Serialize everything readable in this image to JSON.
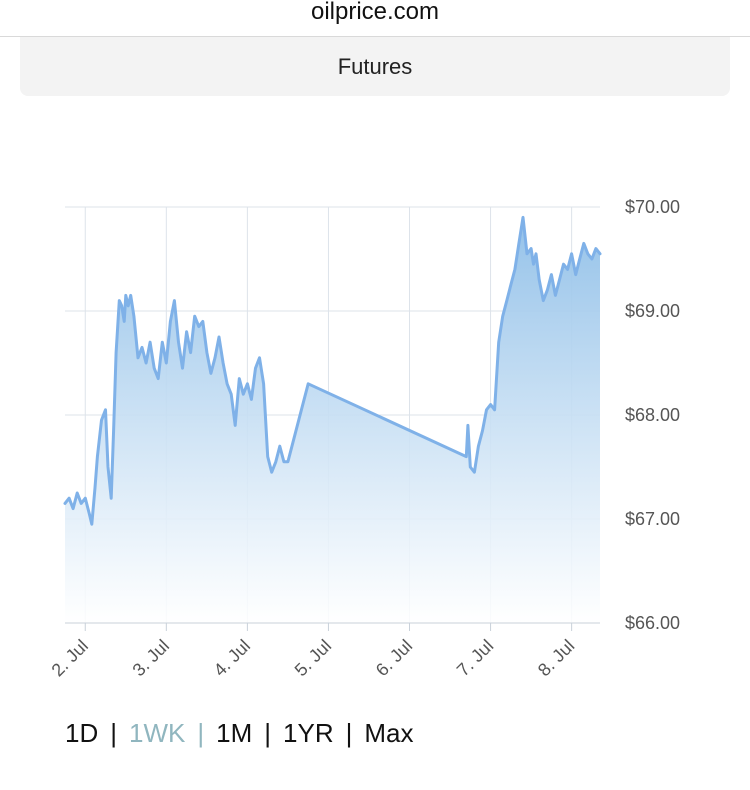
{
  "header": {
    "domain": "oilprice.com",
    "tab_label": "Futures"
  },
  "range_selector": {
    "options": [
      "1D",
      "1WK",
      "1M",
      "1YR",
      "Max"
    ],
    "active_index": 1,
    "separator": "|"
  },
  "colors": {
    "line": "#7fb1e8",
    "area_top": "#8fbfe8",
    "area_bottom": "#ffffff",
    "grid": "#dde3ea",
    "active_range": "#90b6bf"
  },
  "chart_data": {
    "type": "area",
    "title": "",
    "xlabel": "",
    "ylabel": "",
    "y_axis_position": "right",
    "grid": true,
    "ylim": [
      66.0,
      70.0
    ],
    "y_ticks": [
      "$70.00",
      "$69.00",
      "$68.00",
      "$67.00",
      "$66.00"
    ],
    "x_ticks": [
      "2. Jul",
      "3. Jul",
      "4. Jul",
      "5. Jul",
      "6. Jul",
      "7. Jul",
      "8. Jul"
    ],
    "x_range_days": [
      1.75,
      8.35
    ],
    "series": [
      {
        "x": [
          1.75,
          1.8,
          1.85,
          1.9,
          1.95,
          2.0,
          2.05,
          2.08,
          2.12,
          2.15,
          2.2,
          2.25,
          2.28,
          2.32,
          2.35,
          2.38,
          2.42,
          2.45,
          2.48,
          2.5,
          2.53,
          2.56,
          2.6,
          2.65,
          2.7,
          2.75,
          2.8,
          2.85,
          2.9,
          2.95,
          3.0,
          3.05,
          3.1,
          3.15,
          3.2,
          3.25,
          3.3,
          3.35,
          3.4,
          3.45,
          3.5,
          3.55,
          3.6,
          3.65,
          3.7,
          3.75,
          3.8,
          3.85,
          3.9,
          3.95,
          4.0,
          4.05,
          4.1,
          4.15,
          4.2,
          4.25,
          4.3,
          4.35,
          4.4,
          4.45,
          4.5,
          4.75,
          6.7,
          6.72,
          6.75,
          6.8,
          6.85,
          6.9,
          6.95,
          7.0,
          7.05,
          7.1,
          7.15,
          7.2,
          7.25,
          7.3,
          7.35,
          7.4,
          7.45,
          7.5,
          7.53,
          7.56,
          7.6,
          7.65,
          7.7,
          7.75,
          7.8,
          7.85,
          7.9,
          7.95,
          8.0,
          8.05,
          8.1,
          8.15,
          8.2,
          8.25,
          8.3,
          8.35
        ],
        "values": [
          67.15,
          67.2,
          67.1,
          67.25,
          67.15,
          67.2,
          67.05,
          66.95,
          67.3,
          67.6,
          67.95,
          68.05,
          67.5,
          67.2,
          67.85,
          68.6,
          69.1,
          69.05,
          68.9,
          69.15,
          69.05,
          69.15,
          68.95,
          68.55,
          68.65,
          68.5,
          68.7,
          68.45,
          68.35,
          68.7,
          68.5,
          68.9,
          69.1,
          68.7,
          68.45,
          68.8,
          68.6,
          68.95,
          68.85,
          68.9,
          68.6,
          68.4,
          68.55,
          68.75,
          68.5,
          68.3,
          68.2,
          67.9,
          68.35,
          68.2,
          68.3,
          68.15,
          68.45,
          68.55,
          68.3,
          67.6,
          67.45,
          67.55,
          67.7,
          67.55,
          67.55,
          68.3,
          67.6,
          67.9,
          67.5,
          67.45,
          67.7,
          67.85,
          68.05,
          68.1,
          68.05,
          68.7,
          68.95,
          69.1,
          69.25,
          69.4,
          69.65,
          69.9,
          69.55,
          69.6,
          69.45,
          69.55,
          69.3,
          69.1,
          69.2,
          69.35,
          69.15,
          69.3,
          69.45,
          69.4,
          69.55,
          69.35,
          69.5,
          69.65,
          69.55,
          69.5,
          69.6,
          69.55
        ]
      }
    ]
  }
}
